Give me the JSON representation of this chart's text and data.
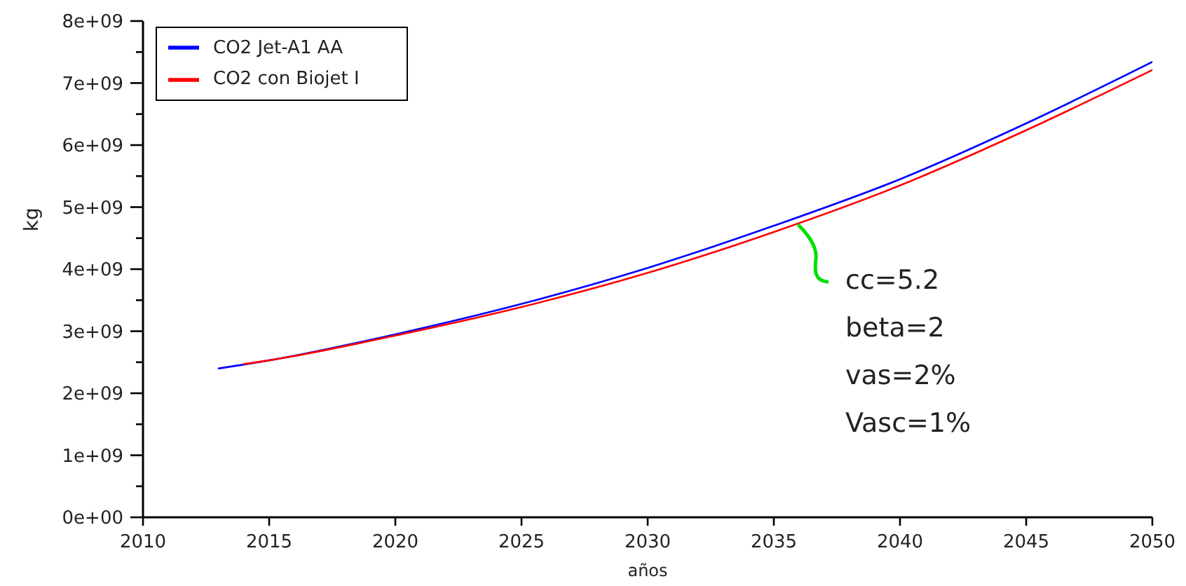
{
  "chart_data": {
    "type": "line",
    "xlabel": "años",
    "ylabel": "kg",
    "series": [
      {
        "name": "CO2 Jet-A1 AA",
        "color": "#0000ff",
        "x": [
          2013,
          2015,
          2020,
          2025,
          2030,
          2035,
          2040,
          2045,
          2050
        ],
        "values": [
          2400000000,
          2530000000,
          2950000000,
          3440000000,
          4020000000,
          4700000000,
          5450000000,
          6350000000,
          7340000000
        ]
      },
      {
        "name": "CO2 con Biojet I",
        "color": "#ff0000",
        "x": [
          2014,
          2015,
          2020,
          2025,
          2030,
          2035,
          2040,
          2045,
          2050
        ],
        "values": [
          2470000000,
          2530000000,
          2930000000,
          3390000000,
          3940000000,
          4600000000,
          5350000000,
          6240000000,
          7210000000
        ]
      }
    ],
    "xlim": [
      2010,
      2050
    ],
    "xticks": [
      2010,
      2015,
      2020,
      2025,
      2030,
      2035,
      2040,
      2045,
      2050
    ],
    "ylim": [
      0,
      8000000000
    ],
    "yticks": [
      {
        "value": 0,
        "label": "0e+00"
      },
      {
        "value": 500000000,
        "label": null
      },
      {
        "value": 1000000000,
        "label": "1e+09"
      },
      {
        "value": 1500000000,
        "label": null
      },
      {
        "value": 2000000000,
        "label": "2e+09"
      },
      {
        "value": 2500000000,
        "label": null
      },
      {
        "value": 3000000000,
        "label": "3e+09"
      },
      {
        "value": 3500000000,
        "label": null
      },
      {
        "value": 4000000000,
        "label": "4e+09"
      },
      {
        "value": 4500000000,
        "label": null
      },
      {
        "value": 5000000000,
        "label": "5e+09"
      },
      {
        "value": 5500000000,
        "label": null
      },
      {
        "value": 6000000000,
        "label": "6e+09"
      },
      {
        "value": 6500000000,
        "label": null
      },
      {
        "value": 7000000000,
        "label": "7e+09"
      },
      {
        "value": 7500000000,
        "label": null
      },
      {
        "value": 8000000000,
        "label": "8e+09"
      }
    ],
    "legend": "top left",
    "marker": "none",
    "line_style": "solid",
    "annotations": [
      {
        "text": "cc=5.2",
        "x": 2036,
        "y": 4700000000
      },
      "beta=2",
      "vas=2%",
      "Vasc=1%"
    ]
  }
}
